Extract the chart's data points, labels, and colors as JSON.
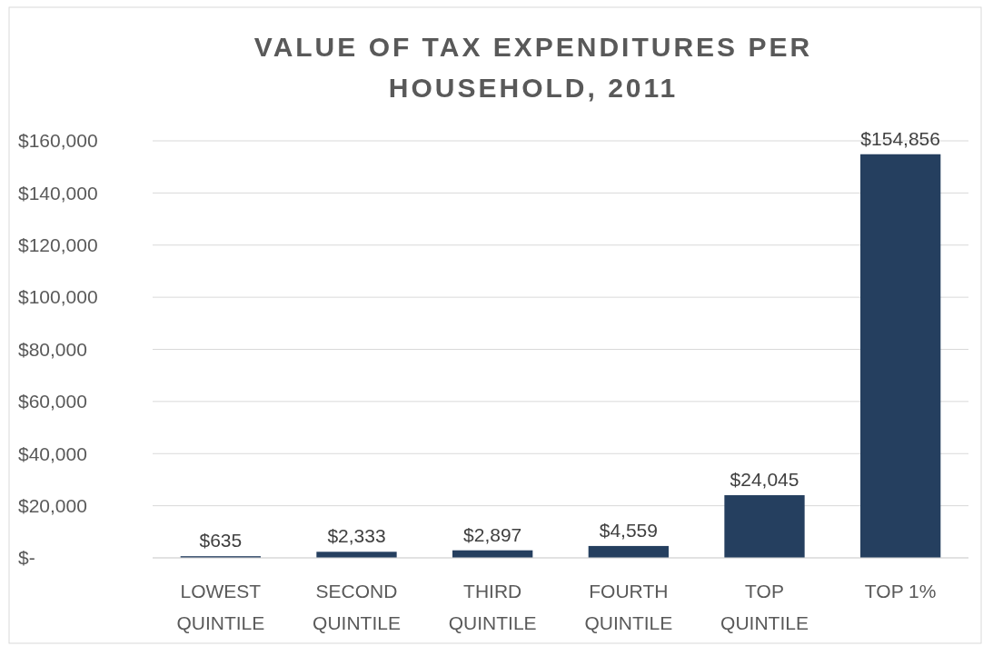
{
  "chart_data": {
    "type": "bar",
    "title": "VALUE OF TAX EXPENDITURES PER HOUSEHOLD, 2011",
    "categories": [
      "LOWEST QUINTILE",
      "SECOND QUINTILE",
      "THIRD QUINTILE",
      "FOURTH QUINTILE",
      "TOP QUINTILE",
      "TOP 1%"
    ],
    "values": [
      635,
      2333,
      2897,
      4559,
      24045,
      154856
    ],
    "value_labels": [
      "$635",
      "$2,333",
      "$2,897",
      "$4,559",
      "$24,045",
      "$154,856"
    ],
    "color": "#253f5f",
    "ylim": [
      0,
      160000
    ],
    "yticks": [
      {
        "value": 0,
        "label": "$-"
      },
      {
        "value": 20000,
        "label": "$20,000"
      },
      {
        "value": 40000,
        "label": "$40,000"
      },
      {
        "value": 60000,
        "label": "$60,000"
      },
      {
        "value": 80000,
        "label": "$80,000"
      },
      {
        "value": 100000,
        "label": "$100,000"
      },
      {
        "value": 120000,
        "label": "$120,000"
      },
      {
        "value": 140000,
        "label": "$140,000"
      },
      {
        "value": 160000,
        "label": "$160,000"
      }
    ],
    "grid": "y"
  }
}
